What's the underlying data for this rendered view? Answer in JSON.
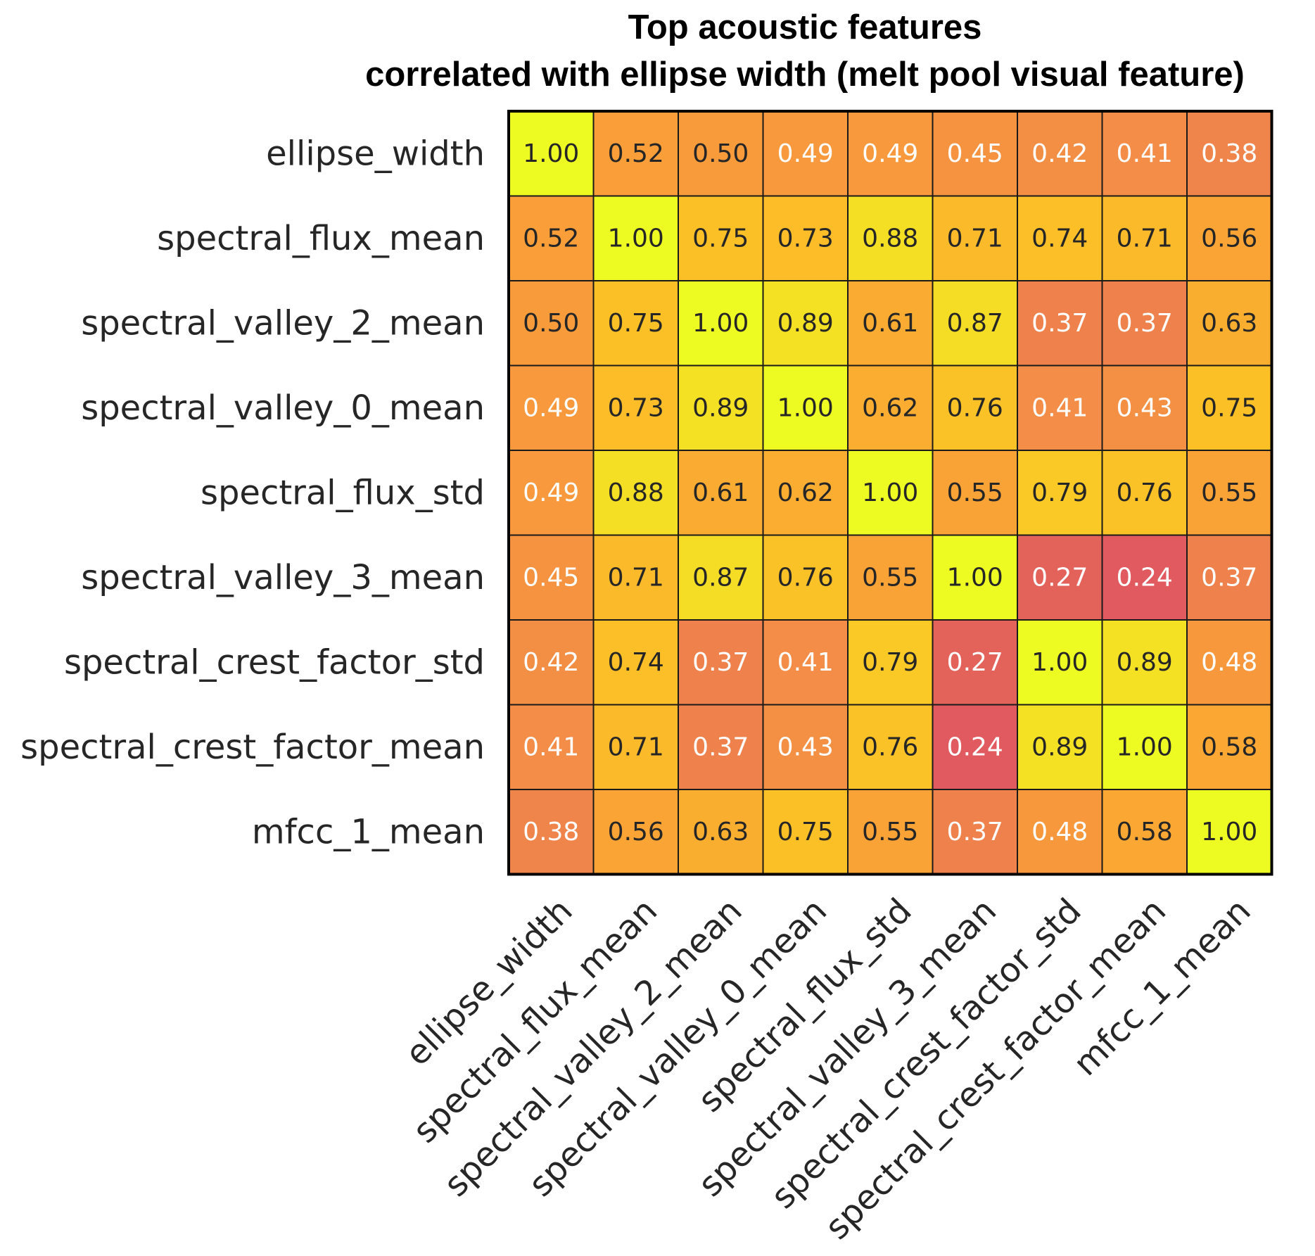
{
  "chart_data": {
    "type": "heatmap",
    "title_lines": [
      "Top acoustic features",
      "correlated with ellipse width (melt pool visual feature)"
    ],
    "row_labels": [
      "ellipse_width",
      "spectral_flux_mean",
      "spectral_valley_2_mean",
      "spectral_valley_0_mean",
      "spectral_flux_std",
      "spectral_valley_3_mean",
      "spectral_crest_factor_std",
      "spectral_crest_factor_mean",
      "mfcc_1_mean"
    ],
    "col_labels": [
      "ellipse_width",
      "spectral_flux_mean",
      "spectral_valley_2_mean",
      "spectral_valley_0_mean",
      "spectral_flux_std",
      "spectral_valley_3_mean",
      "spectral_crest_factor_std",
      "spectral_crest_factor_mean",
      "mfcc_1_mean"
    ],
    "values": [
      [
        1.0,
        0.52,
        0.5,
        0.49,
        0.49,
        0.45,
        0.42,
        0.41,
        0.38
      ],
      [
        0.52,
        1.0,
        0.75,
        0.73,
        0.88,
        0.71,
        0.74,
        0.71,
        0.56
      ],
      [
        0.5,
        0.75,
        1.0,
        0.89,
        0.61,
        0.87,
        0.37,
        0.37,
        0.63
      ],
      [
        0.49,
        0.73,
        0.89,
        1.0,
        0.62,
        0.76,
        0.41,
        0.43,
        0.75
      ],
      [
        0.49,
        0.88,
        0.61,
        0.62,
        1.0,
        0.55,
        0.79,
        0.76,
        0.55
      ],
      [
        0.45,
        0.71,
        0.87,
        0.76,
        0.55,
        1.0,
        0.27,
        0.24,
        0.37
      ],
      [
        0.42,
        0.74,
        0.37,
        0.41,
        0.79,
        0.27,
        1.0,
        0.89,
        0.48
      ],
      [
        0.41,
        0.71,
        0.37,
        0.43,
        0.76,
        0.24,
        0.89,
        1.0,
        0.58
      ],
      [
        0.38,
        0.56,
        0.63,
        0.75,
        0.55,
        0.37,
        0.48,
        0.58,
        1.0
      ]
    ],
    "value_format": "2 decimals",
    "color_scale": {
      "low": "#e05a5f",
      "mid_low": "#f28b48",
      "mid": "#f99e38",
      "mid_high": "#fcc027",
      "high": "#eefb22"
    },
    "text_colors": {
      "dark": "#262626",
      "light": "#ffffff"
    },
    "legend": "none",
    "grid": true
  }
}
